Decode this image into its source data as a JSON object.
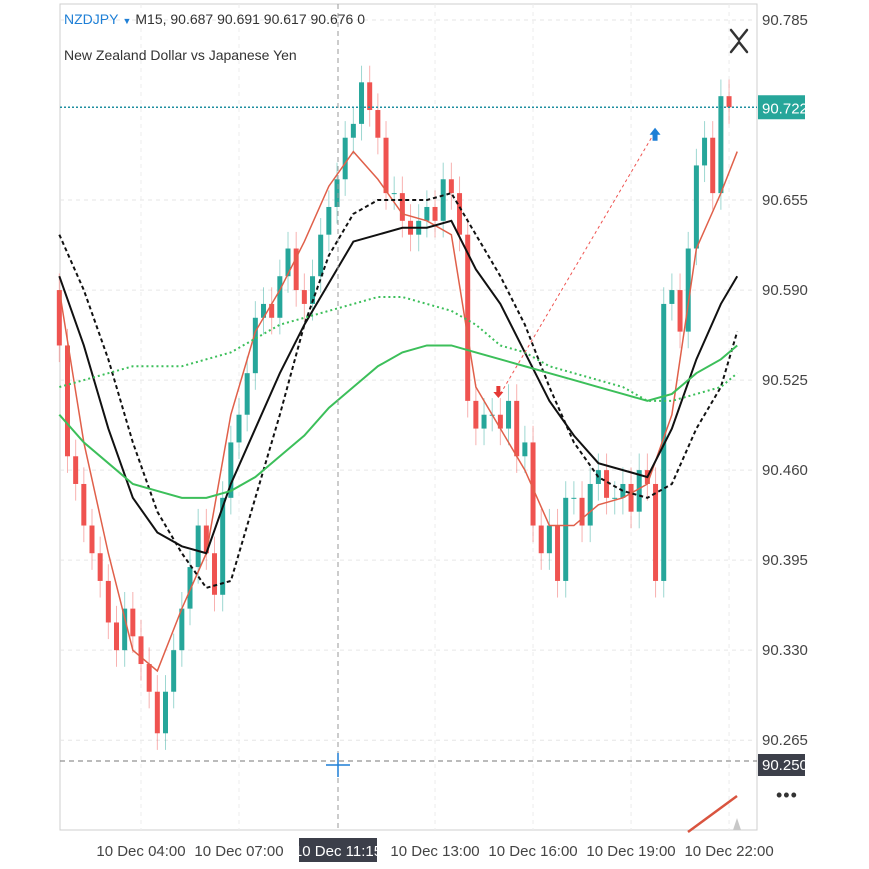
{
  "header": {
    "symbol": "NZDJPY",
    "timeframe": "M15,",
    "ohlc": "90.687 90.691 90.617 90.676 0",
    "description": "New Zealand Dollar vs Japanese Yen"
  },
  "more_label": "•••",
  "colors": {
    "bull": "#26a69a",
    "bear": "#ef5350",
    "last_price_bg": "#26a69a",
    "crosshair_bg": "#3c3f4a",
    "red_ma": "#e0604a",
    "black_ma": "#111111",
    "green_ma": "#3cbf5a"
  },
  "chart_data": {
    "type": "candlestick",
    "ylim": [
      90.215,
      90.8
    ],
    "yticks": [
      "90.785",
      "90.655",
      "90.590",
      "90.525",
      "90.460",
      "90.395",
      "90.330",
      "90.265"
    ],
    "xticks": [
      "10 Dec 04:00",
      "10 Dec 07:00",
      "10 Dec 11:15",
      "10 Dec 13:00",
      "10 Dec 16:00",
      "10 Dec 19:00",
      "10 Dec 22:00"
    ],
    "xtick_hours": [
      4,
      7,
      11.25,
      13,
      16,
      19,
      22
    ],
    "highlighted_xtick": "10 Dec 11:15",
    "last_price": "90.722",
    "crosshair_price": "90.250",
    "candle_start": "01:30",
    "candle_minutes": 15,
    "first_open": 90.59,
    "closes": [
      90.55,
      90.47,
      90.45,
      90.42,
      90.4,
      90.38,
      90.35,
      90.33,
      90.36,
      90.34,
      90.32,
      90.3,
      90.27,
      90.3,
      90.33,
      90.36,
      90.39,
      90.42,
      90.4,
      90.37,
      90.44,
      90.48,
      90.5,
      90.53,
      90.57,
      90.58,
      90.57,
      90.6,
      90.62,
      90.59,
      90.58,
      90.6,
      90.63,
      90.65,
      90.67,
      90.7,
      90.71,
      90.74,
      90.72,
      90.7,
      90.66,
      90.66,
      90.64,
      90.63,
      90.64,
      90.65,
      90.64,
      90.67,
      90.66,
      90.63,
      90.51,
      90.49,
      90.5,
      90.5,
      90.49,
      90.51,
      90.47,
      90.48,
      90.42,
      90.4,
      90.42,
      90.38,
      90.44,
      90.44,
      90.42,
      90.45,
      90.46,
      90.44,
      90.44,
      90.45,
      90.43,
      90.46,
      90.45,
      90.38,
      90.58,
      90.59,
      90.56,
      90.62,
      90.68,
      90.7,
      90.66,
      90.73,
      90.722
    ],
    "line_times": [
      "01:30",
      "02:15",
      "03:00",
      "03:45",
      "04:30",
      "05:15",
      "06:00",
      "06:45",
      "07:30",
      "08:15",
      "09:00",
      "09:45",
      "10:30",
      "11:15",
      "12:00",
      "12:45",
      "13:30",
      "14:15",
      "15:00",
      "15:45",
      "16:30",
      "17:15",
      "18:00",
      "18:45",
      "19:30",
      "20:15",
      "21:00",
      "21:45",
      "22:15"
    ],
    "lines": [
      {
        "color": "#e0604a",
        "style": "solid",
        "values": [
          90.59,
          90.48,
          90.4,
          90.33,
          90.315,
          90.36,
          90.4,
          90.5,
          90.56,
          90.59,
          90.625,
          90.665,
          90.69,
          90.67,
          90.645,
          90.64,
          90.63,
          90.52,
          90.49,
          90.46,
          90.42,
          90.42,
          90.435,
          90.44,
          90.45,
          90.5,
          90.62,
          90.66,
          90.69
        ]
      },
      {
        "color": "#111111",
        "style": "solid",
        "values": [
          90.6,
          90.55,
          90.49,
          90.44,
          90.415,
          90.405,
          90.4,
          90.45,
          90.49,
          90.53,
          90.565,
          90.595,
          90.625,
          90.63,
          90.635,
          90.635,
          90.64,
          90.605,
          90.58,
          90.545,
          90.51,
          90.485,
          90.465,
          90.46,
          90.455,
          90.49,
          90.54,
          90.58,
          90.6
        ]
      },
      {
        "color": "#111111",
        "style": "dashed",
        "values": [
          90.63,
          90.59,
          90.54,
          90.48,
          90.43,
          90.4,
          90.375,
          90.38,
          90.44,
          90.5,
          90.565,
          90.615,
          90.645,
          90.655,
          90.655,
          90.655,
          90.66,
          90.63,
          90.6,
          90.565,
          90.52,
          90.48,
          90.455,
          90.445,
          90.44,
          90.45,
          90.49,
          90.52,
          90.56
        ]
      },
      {
        "color": "#3cbf5a",
        "style": "solid",
        "values": [
          90.5,
          90.48,
          90.465,
          90.45,
          90.445,
          90.44,
          90.44,
          90.445,
          90.455,
          90.47,
          90.485,
          90.505,
          90.52,
          90.535,
          90.545,
          90.55,
          90.55,
          90.545,
          90.54,
          90.535,
          90.53,
          90.525,
          90.52,
          90.515,
          90.51,
          90.515,
          90.53,
          90.54,
          90.55
        ]
      },
      {
        "color": "#3cbf5a",
        "style": "dotted",
        "values": [
          90.52,
          90.525,
          90.53,
          90.535,
          90.535,
          90.535,
          90.54,
          90.545,
          90.555,
          90.565,
          90.57,
          90.575,
          90.58,
          90.585,
          90.585,
          90.58,
          90.575,
          90.565,
          90.55,
          90.545,
          90.535,
          90.53,
          90.525,
          90.52,
          90.51,
          90.51,
          90.515,
          90.52,
          90.53
        ]
      }
    ],
    "trade": {
      "sell_time": "15:00",
      "sell_price": 90.515,
      "buy_time": "19:45",
      "buy_price": 90.705
    }
  }
}
